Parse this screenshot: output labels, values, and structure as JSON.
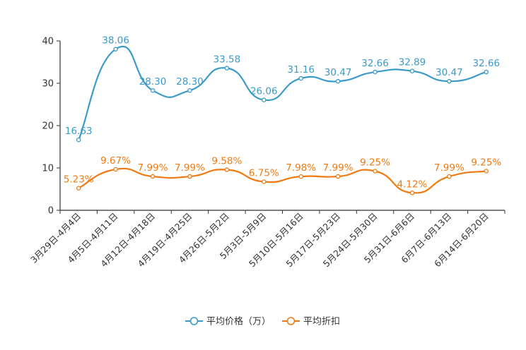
{
  "chart_data": {
    "type": "line",
    "categories": [
      "3月29日-4月4日",
      "4月5日-4月11日",
      "4月12日-4月18日",
      "4月19日-4月25日",
      "4月26日-5月2日",
      "5月3日-5月9日",
      "5月10日-5月16日",
      "5月17日-5月23日",
      "5月24日-5月30日",
      "5月31日-6月6日",
      "6月7日-6月13日",
      "6月14日-6月20日"
    ],
    "ylim": [
      0,
      40
    ],
    "yticks": [
      "0",
      "10",
      "20",
      "30",
      "40"
    ],
    "series": [
      {
        "name": "平均价格（万）",
        "color": "#3a9ac9",
        "values": [
          16.63,
          38.06,
          28.3,
          28.3,
          33.58,
          26.06,
          31.16,
          30.47,
          32.66,
          32.89,
          30.47,
          32.66
        ],
        "labels": [
          "16.63",
          "38.06",
          "28.30",
          "28.30",
          "33.58",
          "26.06",
          "31.16",
          "30.47",
          "32.66",
          "32.89",
          "30.47",
          "32.66"
        ]
      },
      {
        "name": "平均折扣",
        "color": "#f07a12",
        "values": [
          5.23,
          9.67,
          7.99,
          7.99,
          9.58,
          6.75,
          7.98,
          7.99,
          9.25,
          4.12,
          7.99,
          9.25
        ],
        "labels": [
          "5.23%",
          "9.67%",
          "7.99%",
          "7.99%",
          "9.58%",
          "6.75%",
          "7.98%",
          "7.99%",
          "9.25%",
          "4.12%",
          "7.99%",
          "9.25%"
        ]
      }
    ],
    "legend_position": "bottom-center"
  }
}
